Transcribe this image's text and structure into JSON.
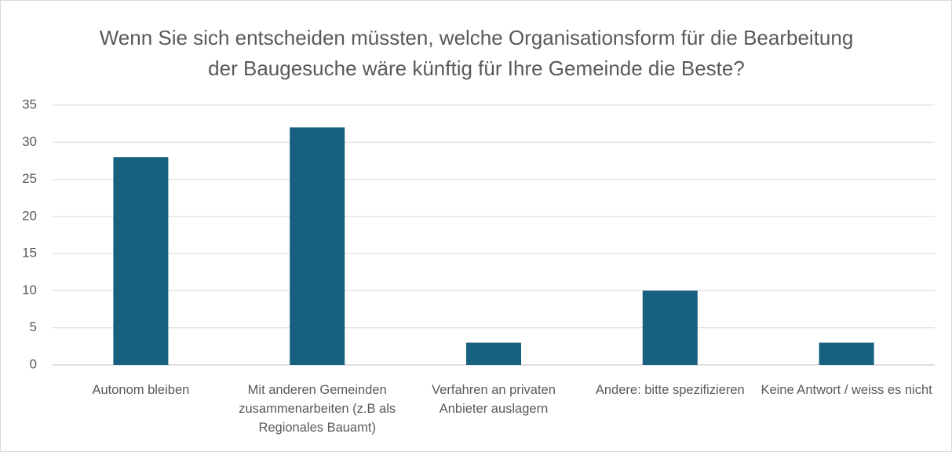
{
  "chart_data": {
    "type": "bar",
    "title": "Wenn Sie sich entscheiden müssten, welche Organisationsform für die Bearbeitung der Baugesuche wäre künftig für Ihre Gemeinde die Beste?",
    "categories": [
      "Autonom bleiben",
      "Mit anderen Gemeinden zusammenarbeiten (z.B als Regionales Bauamt)",
      "Verfahren an privaten Anbieter auslagern",
      "Andere: bitte spezifizieren",
      "Keine Antwort / weiss es nicht"
    ],
    "values": [
      28,
      32,
      3,
      10,
      3
    ],
    "color": "#17607f",
    "ylim": [
      0,
      35
    ],
    "yticks": [
      0,
      5,
      10,
      15,
      20,
      25,
      30,
      35
    ],
    "grid": true
  }
}
